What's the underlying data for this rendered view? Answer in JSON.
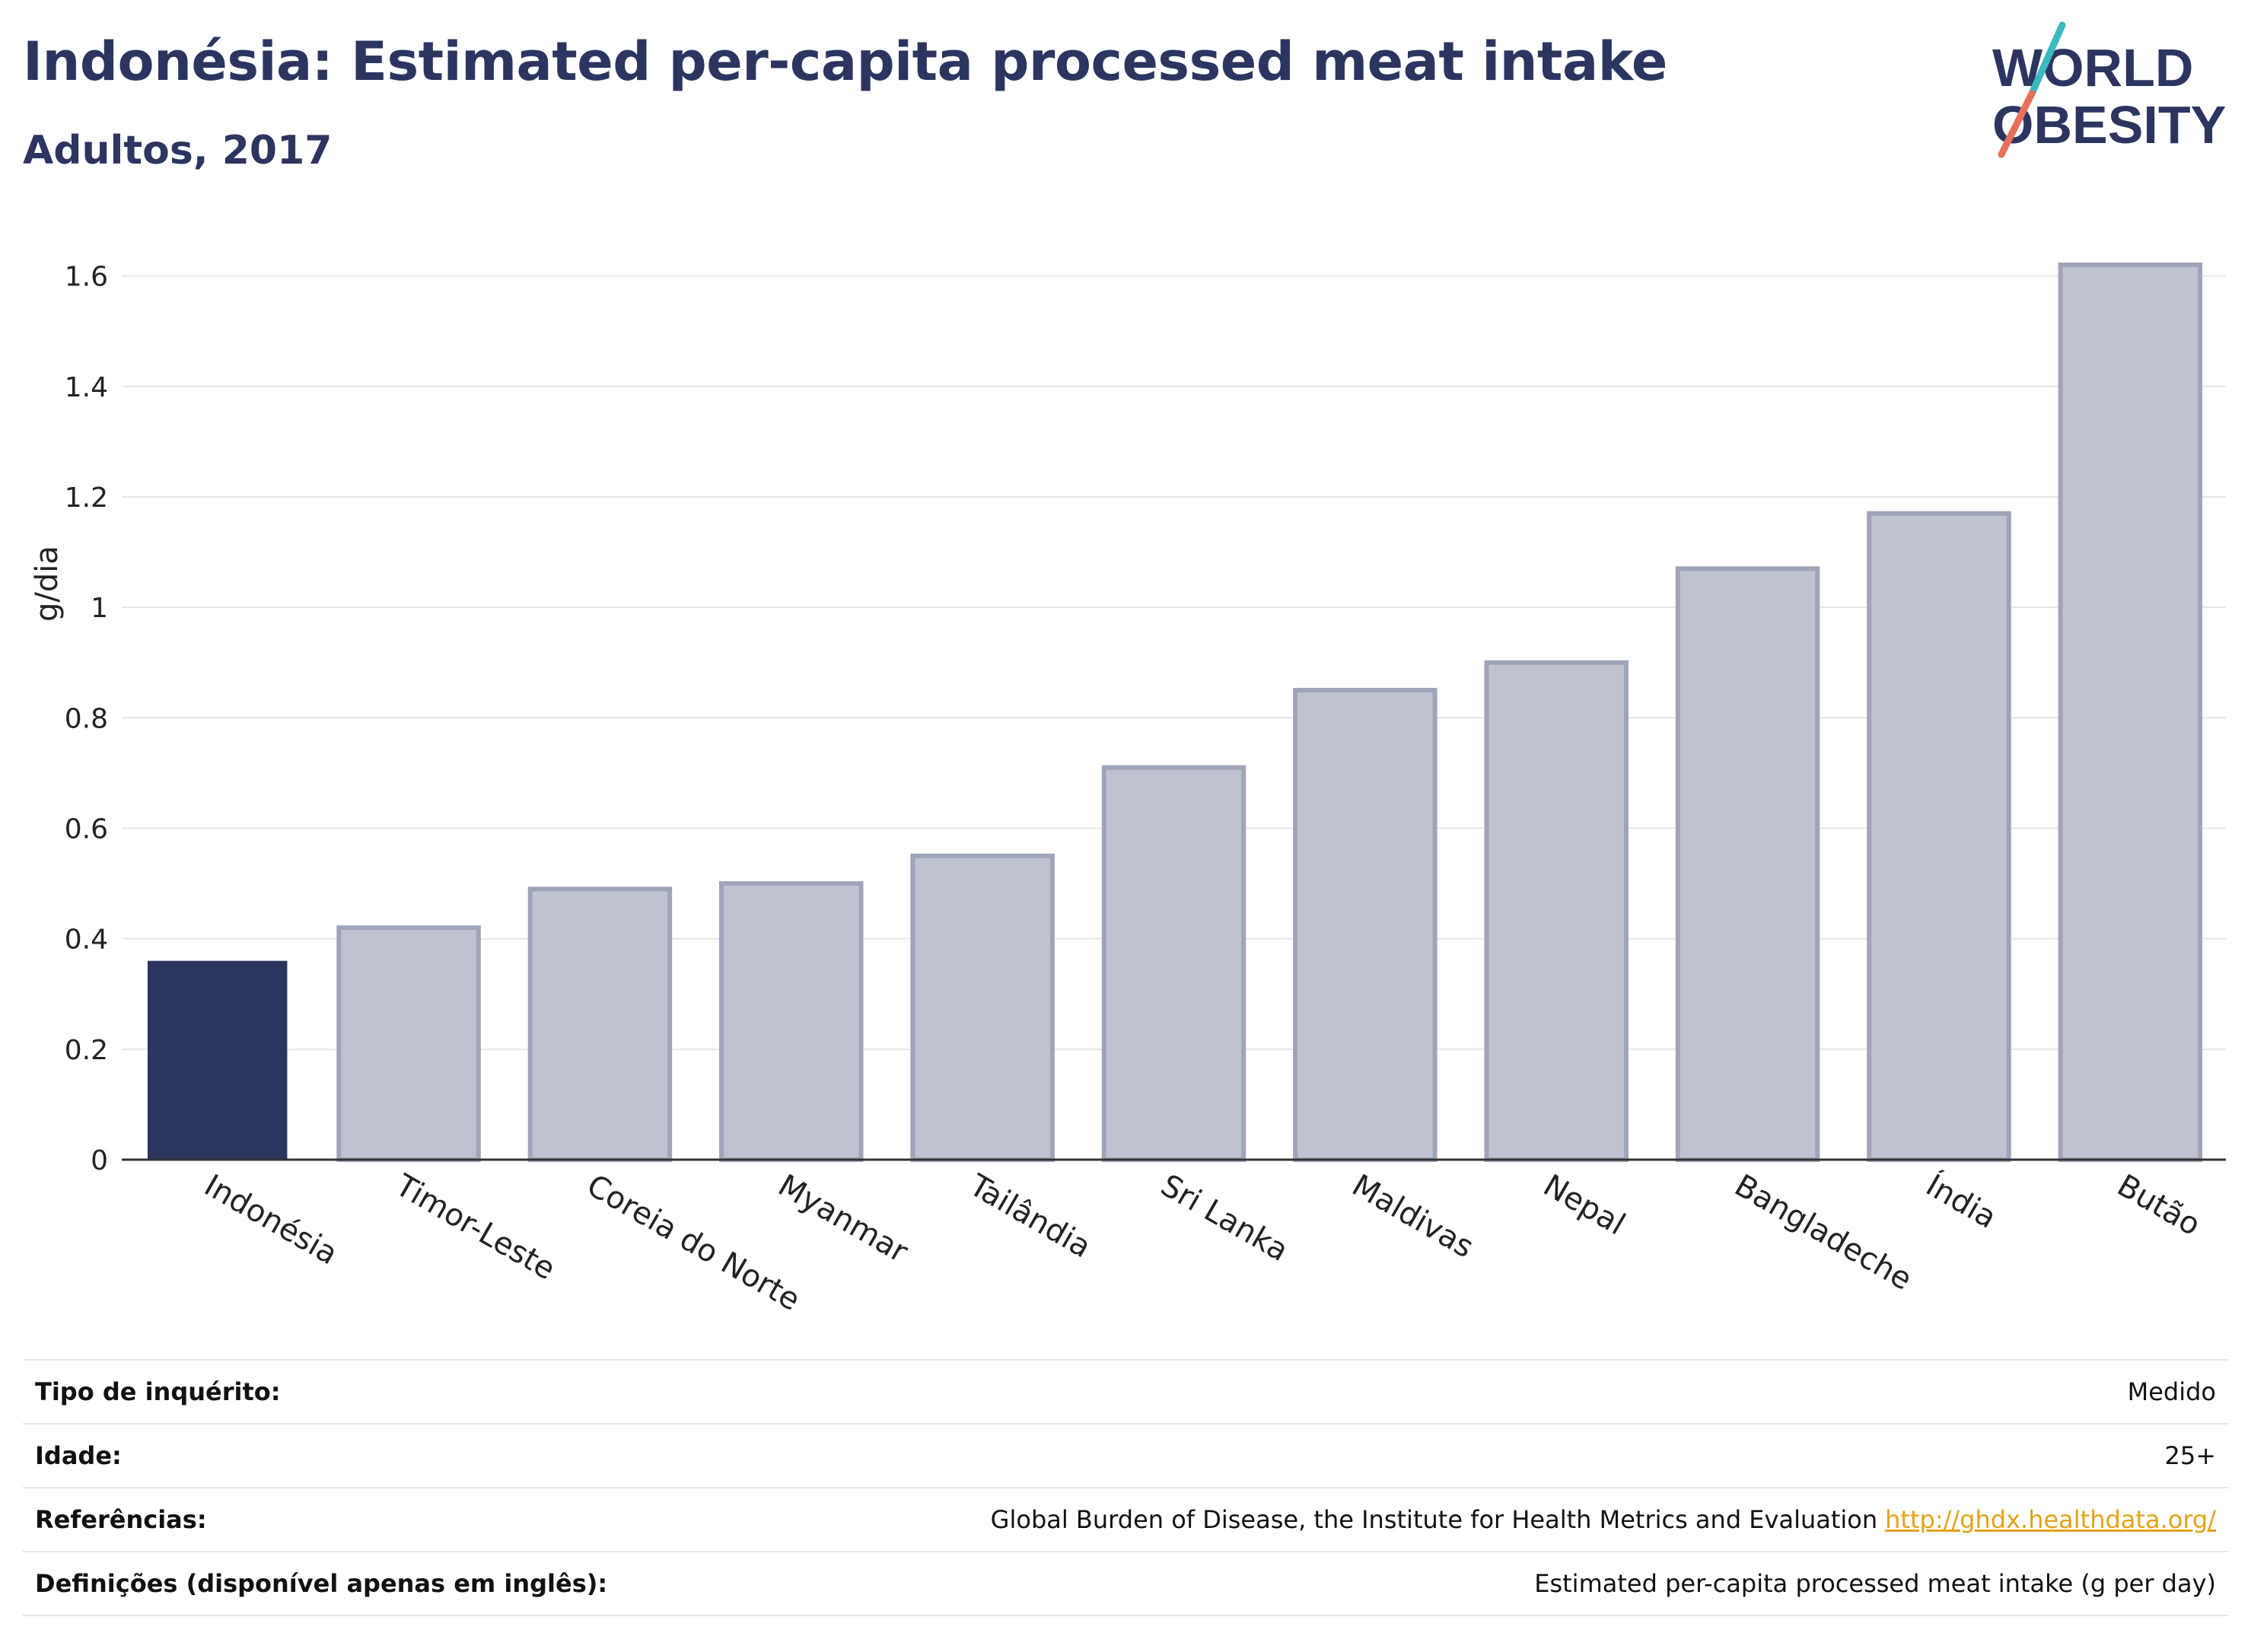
{
  "header": {
    "title": "Indonésia: Estimated per-capita processed meat intake",
    "subtitle": "Adultos, 2017"
  },
  "logo": {
    "line1": "WORLD",
    "line2": "OBESITY",
    "accent_teal": "#3bb8c0",
    "accent_coral": "#e8705a",
    "text_color": "#2c3560"
  },
  "colors": {
    "highlight": "#2c3560",
    "other_fill": "#bfc3d0",
    "other_stroke": "#9fa4b8",
    "grid": "#e6e6e6"
  },
  "chart_data": {
    "type": "bar",
    "categories": [
      "Indonésia",
      "Timor-Leste",
      "Coreia do Norte",
      "Myanmar",
      "Tailândia",
      "Sri Lanka",
      "Maldivas",
      "Nepal",
      "Bangladeche",
      "Índia",
      "Butão"
    ],
    "values": [
      0.36,
      0.42,
      0.49,
      0.5,
      0.55,
      0.71,
      0.85,
      0.9,
      1.07,
      1.17,
      1.62
    ],
    "highlight_index": 0,
    "title": "Indonésia: Estimated per-capita processed meat intake",
    "subtitle": "Adultos, 2017",
    "xlabel": "",
    "ylabel": "g/dia",
    "ylim": [
      0,
      1.7
    ],
    "yticks": [
      0,
      0.2,
      0.4,
      0.6,
      0.8,
      1,
      1.2,
      1.4,
      1.6
    ],
    "ytick_labels": [
      "0",
      "0.2",
      "0.4",
      "0.6",
      "0.8",
      "1",
      "1.2",
      "1.4",
      "1.6"
    ],
    "grid": true
  },
  "info": {
    "rows": [
      {
        "label": "Tipo de inquérito:",
        "value": "Medido"
      },
      {
        "label": "Idade:",
        "value": "25+"
      },
      {
        "label": "Referências:",
        "value": "Global Burden of Disease, the Institute for Health Metrics and Evaluation",
        "link": "http://ghdx.healthdata.org/"
      },
      {
        "label": "Definições (disponível apenas em inglês):",
        "value": "Estimated per-capita processed meat intake (g per day)"
      }
    ]
  }
}
